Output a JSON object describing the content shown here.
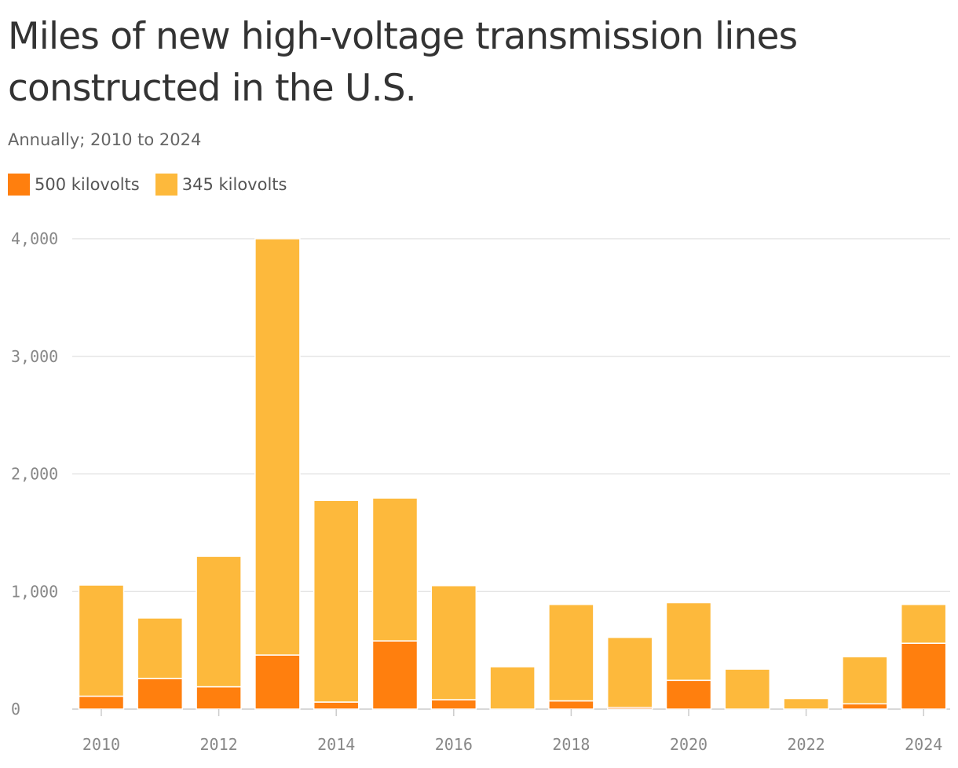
{
  "chart_data": {
    "type": "bar",
    "stacked": true,
    "title": "Miles of new high-voltage transmission lines constructed in the U.S.",
    "subtitle": "Annually; 2010 to 2024",
    "categories": [
      "2010",
      "2011",
      "2012",
      "2013",
      "2014",
      "2015",
      "2016",
      "2017",
      "2018",
      "2019",
      "2020",
      "2021",
      "2022",
      "2023",
      "2024"
    ],
    "x_tick_labels": [
      "2010",
      "2012",
      "2014",
      "2016",
      "2018",
      "2020",
      "2022",
      "2024"
    ],
    "series": [
      {
        "name": "500 kilovolts",
        "color": "#ff7f0e",
        "values": [
          110,
          260,
          190,
          460,
          60,
          580,
          80,
          0,
          70,
          15,
          245,
          0,
          0,
          45,
          560
        ]
      },
      {
        "name": "345 kilovolts",
        "color": "#fdb93c",
        "values": [
          945,
          515,
          1110,
          3540,
          1715,
          1215,
          970,
          360,
          820,
          595,
          660,
          340,
          90,
          400,
          330
        ]
      }
    ],
    "ylim": [
      0,
      4000
    ],
    "y_ticks": [
      0,
      1000,
      2000,
      3000,
      4000
    ],
    "y_tick_labels": [
      "0",
      "1,000",
      "2,000",
      "3,000",
      "4,000"
    ],
    "grid": true,
    "legend": "top-left"
  }
}
